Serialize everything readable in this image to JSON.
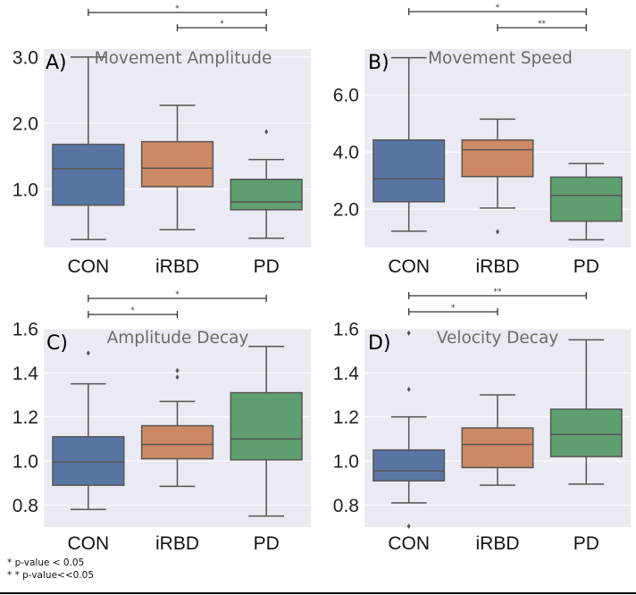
{
  "colors": {
    "CON": "#5975A4",
    "iRBD": "#CC8963",
    "PD": "#5F9E6E",
    "background": "#EAEAF2",
    "grid": "#FFFFFF",
    "line": "#555555"
  },
  "footnote": {
    "line1": "*  p-value < 0.05",
    "line2": "*  * p-value<<0.05"
  },
  "chart_data": [
    {
      "type": "box",
      "panel_label": "A)",
      "title": "Movement Amplitude",
      "categories": [
        "CON",
        "iRBD",
        "PD"
      ],
      "ylim": [
        0.12,
        3.12
      ],
      "yticks": [
        1.0,
        2.0,
        3.0
      ],
      "ytick_labels": [
        "1.0",
        "2.0",
        "3.0"
      ],
      "grid": true,
      "boxes": [
        {
          "name": "CON",
          "whislo": 0.24,
          "q1": 0.76,
          "med": 1.31,
          "q3": 1.68,
          "whishi": 3.0,
          "fliers": []
        },
        {
          "name": "iRBD",
          "whislo": 0.39,
          "q1": 1.04,
          "med": 1.32,
          "q3": 1.72,
          "whishi": 2.27,
          "fliers": []
        },
        {
          "name": "PD",
          "whislo": 0.26,
          "q1": 0.69,
          "med": 0.81,
          "q3": 1.15,
          "whishi": 1.45,
          "fliers": [
            1.87
          ]
        }
      ],
      "significance": [
        {
          "from": "CON",
          "to": "PD",
          "label": "*",
          "level": 1
        },
        {
          "from": "iRBD",
          "to": "PD",
          "label": "*",
          "level": 0
        }
      ]
    },
    {
      "type": "box",
      "panel_label": "B)",
      "title": "Movement Speed",
      "categories": [
        "CON",
        "iRBD",
        "PD"
      ],
      "ylim": [
        0.66,
        7.6
      ],
      "yticks": [
        2.0,
        4.0,
        6.0
      ],
      "ytick_labels": [
        "2.0",
        "4.0",
        "6.0"
      ],
      "grid": true,
      "boxes": [
        {
          "name": "CON",
          "whislo": 1.23,
          "q1": 2.26,
          "med": 3.06,
          "q3": 4.42,
          "whishi": 7.3,
          "fliers": []
        },
        {
          "name": "iRBD",
          "whislo": 2.04,
          "q1": 3.14,
          "med": 4.08,
          "q3": 4.42,
          "whishi": 5.15,
          "fliers": [
            1.21
          ]
        },
        {
          "name": "PD",
          "whislo": 0.93,
          "q1": 1.58,
          "med": 2.48,
          "q3": 3.12,
          "whishi": 3.6,
          "fliers": []
        }
      ],
      "significance": [
        {
          "from": "CON",
          "to": "PD",
          "label": "*",
          "level": 1
        },
        {
          "from": "iRBD",
          "to": "PD",
          "label": "**",
          "level": 0
        }
      ]
    },
    {
      "type": "box",
      "panel_label": "C)",
      "title": "Amplitude Decay",
      "categories": [
        "CON",
        "iRBD",
        "PD"
      ],
      "ylim": [
        0.7,
        1.6
      ],
      "yticks": [
        0.8,
        1.0,
        1.2,
        1.4,
        1.6
      ],
      "ytick_labels": [
        "0.8",
        "1.0",
        "1.2",
        "1.4",
        "1.6"
      ],
      "grid": true,
      "boxes": [
        {
          "name": "CON",
          "whislo": 0.78,
          "q1": 0.89,
          "med": 0.995,
          "q3": 1.11,
          "whishi": 1.35,
          "fliers": [
            1.49
          ]
        },
        {
          "name": "iRBD",
          "whislo": 0.885,
          "q1": 1.01,
          "med": 1.075,
          "q3": 1.16,
          "whishi": 1.27,
          "fliers": [
            1.41,
            1.38
          ]
        },
        {
          "name": "PD",
          "whislo": 0.75,
          "q1": 1.005,
          "med": 1.1,
          "q3": 1.31,
          "whishi": 1.52,
          "fliers": []
        }
      ],
      "significance": [
        {
          "from": "CON",
          "to": "PD",
          "label": "*",
          "level": 1
        },
        {
          "from": "CON",
          "to": "iRBD",
          "label": "*",
          "level": 0
        }
      ]
    },
    {
      "type": "box",
      "panel_label": "D)",
      "title": "Velocity Decay",
      "categories": [
        "CON",
        "iRBD",
        "PD"
      ],
      "ylim": [
        0.7,
        1.6
      ],
      "yticks": [
        0.8,
        1.0,
        1.2,
        1.4,
        1.6
      ],
      "ytick_labels": [
        "0.8",
        "1.0",
        "1.2",
        "1.4",
        "1.6"
      ],
      "grid": true,
      "boxes": [
        {
          "name": "CON",
          "whislo": 0.81,
          "q1": 0.91,
          "med": 0.955,
          "q3": 1.05,
          "whishi": 1.2,
          "fliers": [
            1.58,
            1.325,
            0.7
          ]
        },
        {
          "name": "iRBD",
          "whislo": 0.89,
          "q1": 0.97,
          "med": 1.075,
          "q3": 1.15,
          "whishi": 1.3,
          "fliers": []
        },
        {
          "name": "PD",
          "whislo": 0.895,
          "q1": 1.02,
          "med": 1.12,
          "q3": 1.235,
          "whishi": 1.55,
          "fliers": []
        }
      ],
      "significance": [
        {
          "from": "CON",
          "to": "PD",
          "label": "**",
          "level": 1
        },
        {
          "from": "CON",
          "to": "iRBD",
          "label": "*",
          "level": 0
        }
      ]
    }
  ]
}
